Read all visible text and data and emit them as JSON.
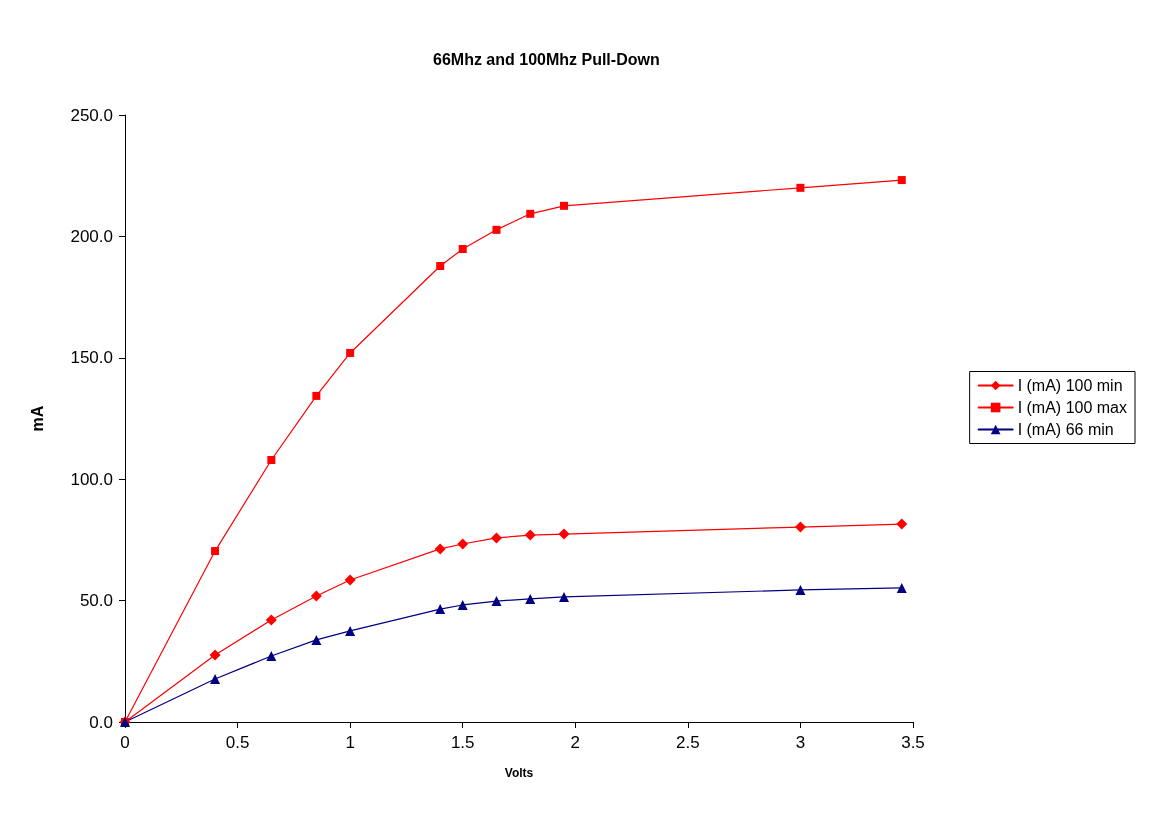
{
  "chart_data": {
    "type": "line",
    "title": "66Mhz and 100Mhz Pull-Down",
    "xlabel": "Volts",
    "ylabel": "mA",
    "x": [
      0,
      0.4,
      0.65,
      0.85,
      1,
      1.4,
      1.5,
      1.65,
      1.8,
      1.95,
      3,
      3.45
    ],
    "series": [
      {
        "name": "I (mA) 100 min",
        "color": "#ff0000",
        "marker": "diamond",
        "values": [
          0,
          27.6,
          42,
          51.9,
          58.5,
          71.3,
          73.3,
          75.8,
          77,
          77.4,
          80.3,
          81.5
        ]
      },
      {
        "name": "I (mA) 100 max",
        "color": "#ff0000",
        "marker": "square",
        "values": [
          0,
          70.4,
          107.9,
          134.3,
          152,
          187.8,
          194.8,
          202.7,
          209.3,
          212.6,
          220,
          223.2
        ]
      },
      {
        "name": "I (mA) 66 min",
        "color": "#000080",
        "marker": "triangle",
        "values": [
          0,
          17.7,
          27.2,
          33.8,
          37.5,
          46.5,
          48.2,
          49.8,
          50.7,
          51.5,
          54.4,
          55.2
        ]
      }
    ],
    "xlim": [
      0,
      3.5
    ],
    "xticks": [
      0,
      0.5,
      1,
      1.5,
      2,
      2.5,
      3,
      3.5
    ],
    "ylim": [
      0,
      250
    ],
    "yticks": [
      {
        "value": 0,
        "label": "0.0"
      },
      {
        "value": 50,
        "label": "50.0"
      },
      {
        "value": 100,
        "label": "100.0"
      },
      {
        "value": 150,
        "label": "150.0"
      },
      {
        "value": 200,
        "label": "200.0"
      },
      {
        "value": 250,
        "label": "250.0"
      }
    ],
    "grid": false,
    "legend": "right",
    "line_style": "solid"
  }
}
